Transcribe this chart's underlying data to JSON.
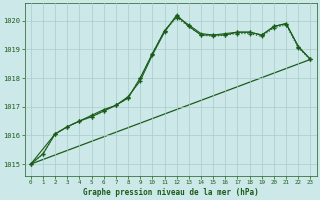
{
  "title": "Graphe pression niveau de la mer (hPa)",
  "bg_color": "#cce8e8",
  "grid_color": "#aacccc",
  "line_color": "#1a5c1a",
  "text_color": "#1a5c1a",
  "xlim": [
    -0.5,
    23.5
  ],
  "ylim": [
    1014.6,
    1020.6
  ],
  "yticks": [
    1015,
    1016,
    1017,
    1018,
    1019,
    1020
  ],
  "xticks": [
    0,
    1,
    2,
    3,
    4,
    5,
    6,
    7,
    8,
    9,
    10,
    11,
    12,
    13,
    14,
    15,
    16,
    17,
    18,
    19,
    20,
    21,
    22,
    23
  ],
  "line_dotted": {
    "x": [
      0,
      1,
      2,
      3,
      4,
      5,
      6,
      7,
      8,
      9,
      10,
      11,
      12,
      13,
      14,
      15,
      16,
      17,
      18,
      19,
      20,
      21,
      22,
      23
    ],
    "y": [
      1015.0,
      1015.35,
      1016.05,
      1016.3,
      1016.5,
      1016.65,
      1016.85,
      1017.05,
      1017.3,
      1018.0,
      1018.85,
      1019.65,
      1020.1,
      1019.8,
      1019.5,
      1019.45,
      1019.5,
      1019.55,
      1019.55,
      1019.45,
      1019.75,
      1019.85,
      1019.05,
      1018.65
    ]
  },
  "line_solid1": {
    "x": [
      0,
      1,
      2,
      3,
      4,
      5,
      6,
      7,
      8,
      9,
      10,
      11,
      12,
      13,
      14,
      15,
      16,
      17,
      18,
      19,
      20,
      21,
      22,
      23
    ],
    "y": [
      1015.0,
      1015.35,
      1016.05,
      1016.3,
      1016.5,
      1016.65,
      1016.85,
      1017.05,
      1017.3,
      1018.0,
      1018.85,
      1019.65,
      1020.15,
      1019.85,
      1019.55,
      1019.5,
      1019.55,
      1019.6,
      1019.6,
      1019.5,
      1019.8,
      1019.9,
      1019.1,
      1018.65
    ]
  },
  "line_solid2": {
    "x": [
      0,
      2,
      3,
      4,
      5,
      6,
      7,
      8,
      9,
      10,
      11,
      12,
      13,
      14,
      15,
      16,
      17,
      18,
      19,
      20,
      21,
      22,
      23
    ],
    "y": [
      1015.0,
      1016.05,
      1016.3,
      1016.5,
      1016.7,
      1016.9,
      1017.05,
      1017.35,
      1017.9,
      1018.8,
      1019.6,
      1020.2,
      1019.8,
      1019.5,
      1019.5,
      1019.5,
      1019.6,
      1019.6,
      1019.5,
      1019.8,
      1019.9,
      1019.1,
      1018.65
    ]
  },
  "line_straight": {
    "x": [
      0,
      23
    ],
    "y": [
      1015.0,
      1018.65
    ]
  }
}
